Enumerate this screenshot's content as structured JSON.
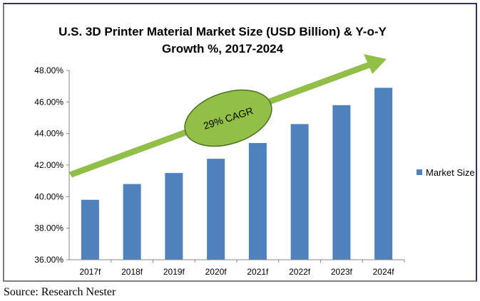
{
  "chart_data": {
    "type": "bar",
    "title_line1": "U.S. 3D Printer Material Market Size (USD Billion) & Y-o-Y",
    "title_line2": "Growth %, 2017-2024",
    "categories": [
      "2017f",
      "2018f",
      "2019f",
      "2020f",
      "2021f",
      "2022f",
      "2023f",
      "2024f"
    ],
    "series": [
      {
        "name": "Market Size",
        "values": [
          39.8,
          40.8,
          41.5,
          42.4,
          43.4,
          44.6,
          45.8,
          46.9
        ]
      }
    ],
    "y_ticks": [
      "36.00%",
      "38.00%",
      "40.00%",
      "42.00%",
      "44.00%",
      "46.00%",
      "48.00%"
    ],
    "ylim": [
      36,
      48
    ],
    "legend_position": "right",
    "annotation": "29% CAGR",
    "colors": {
      "bar": "#4f81bd",
      "arrow": "#92c046",
      "ellipse": "#92c046"
    }
  },
  "source": "Source: Research Nester"
}
